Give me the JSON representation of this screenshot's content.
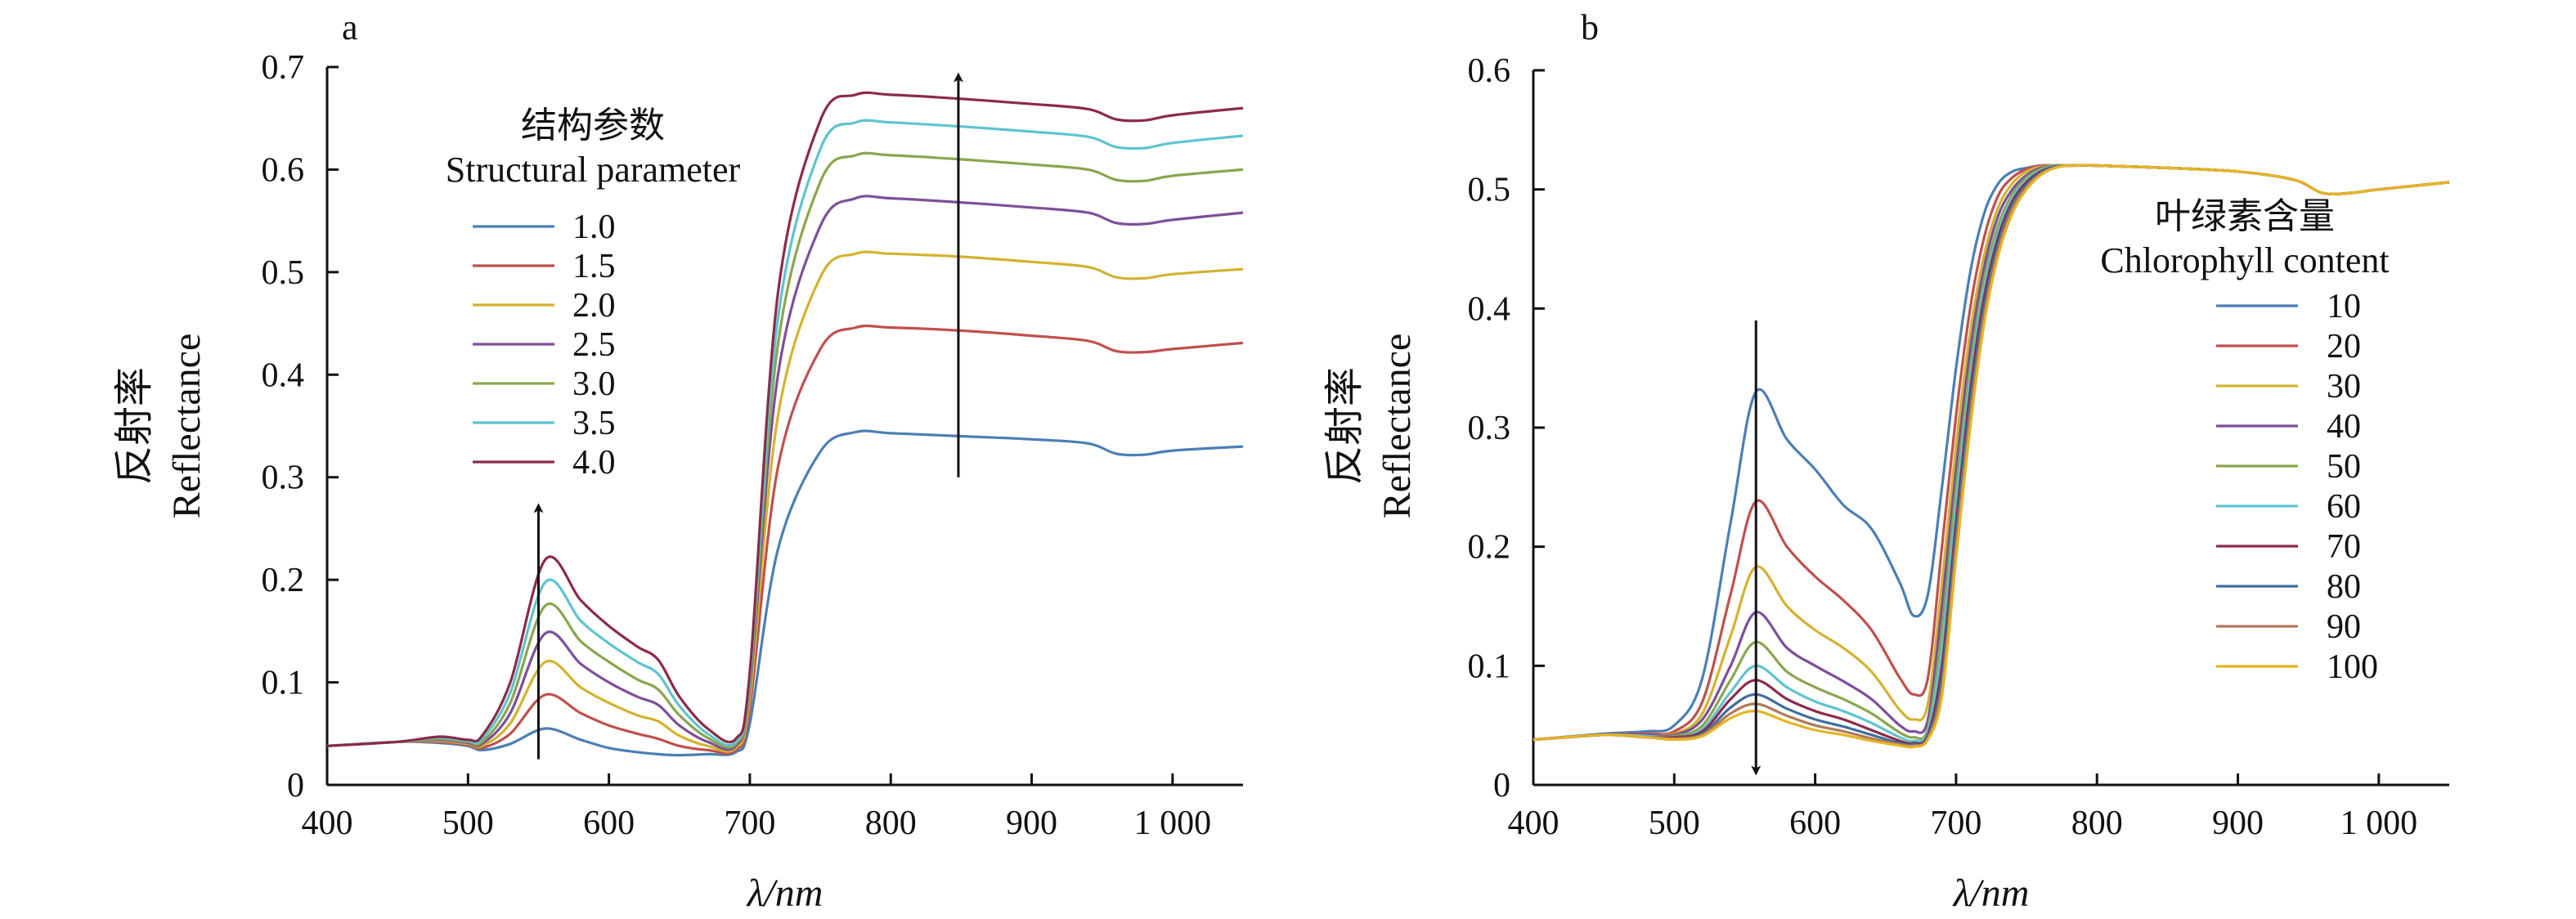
{
  "chart_data": [
    {
      "type": "line",
      "panel_label": "a",
      "xlabel": "λ/nm",
      "ylabel_cn": "反射率",
      "ylabel_en": "Reflectance",
      "xlim": [
        400,
        1050
      ],
      "ylim": [
        0,
        0.7
      ],
      "xticks": [
        {
          "value": 400,
          "label": "400"
        },
        {
          "value": 500,
          "label": "500"
        },
        {
          "value": 600,
          "label": "600"
        },
        {
          "value": 700,
          "label": "700"
        },
        {
          "value": 800,
          "label": "800"
        },
        {
          "value": 900,
          "label": "900"
        },
        {
          "value": 1000,
          "label": "1 000"
        }
      ],
      "yticks": [
        {
          "value": 0,
          "label": "0"
        },
        {
          "value": 0.1,
          "label": "0.1"
        },
        {
          "value": 0.2,
          "label": "0.2"
        },
        {
          "value": 0.3,
          "label": "0.3"
        },
        {
          "value": 0.4,
          "label": "0.4"
        },
        {
          "value": 0.5,
          "label": "0.5"
        },
        {
          "value": 0.6,
          "label": "0.6"
        },
        {
          "value": 0.7,
          "label": "0.7"
        }
      ],
      "grid": false,
      "legend_title_cn": "结构参数",
      "legend_title_en": "Structural parameter",
      "legend_position": "top-left",
      "x": [
        400,
        450,
        480,
        500,
        510,
        530,
        555,
        580,
        600,
        620,
        635,
        650,
        670,
        690,
        700,
        720,
        750,
        775,
        800,
        850,
        900,
        940,
        960,
        980,
        1000,
        1050
      ],
      "series": [
        {
          "name": "1.0",
          "color": "#4a7fb5",
          "values": [
            0.038,
            0.042,
            0.041,
            0.038,
            0.034,
            0.04,
            0.055,
            0.044,
            0.036,
            0.032,
            0.03,
            0.029,
            0.03,
            0.032,
            0.06,
            0.23,
            0.325,
            0.344,
            0.343,
            0.34,
            0.337,
            0.333,
            0.323,
            0.322,
            0.326,
            0.33
          ]
        },
        {
          "name": "1.5",
          "color": "#c0504d",
          "values": [
            0.038,
            0.042,
            0.042,
            0.039,
            0.036,
            0.05,
            0.088,
            0.07,
            0.058,
            0.05,
            0.045,
            0.038,
            0.034,
            0.034,
            0.075,
            0.31,
            0.425,
            0.446,
            0.446,
            0.443,
            0.438,
            0.433,
            0.423,
            0.422,
            0.425,
            0.431
          ]
        },
        {
          "name": "2.0",
          "color": "#d4b22e",
          "values": [
            0.038,
            0.042,
            0.043,
            0.04,
            0.038,
            0.06,
            0.12,
            0.095,
            0.08,
            0.068,
            0.062,
            0.048,
            0.038,
            0.036,
            0.085,
            0.36,
            0.495,
            0.518,
            0.518,
            0.515,
            0.51,
            0.505,
            0.495,
            0.494,
            0.498,
            0.503
          ]
        },
        {
          "name": "2.5",
          "color": "#7d4f9a",
          "values": [
            0.038,
            0.042,
            0.044,
            0.041,
            0.04,
            0.07,
            0.148,
            0.118,
            0.1,
            0.086,
            0.078,
            0.058,
            0.042,
            0.038,
            0.095,
            0.4,
            0.545,
            0.572,
            0.572,
            0.568,
            0.563,
            0.558,
            0.548,
            0.547,
            0.551,
            0.558
          ]
        },
        {
          "name": "3.0",
          "color": "#8aa64f",
          "values": [
            0.038,
            0.042,
            0.045,
            0.042,
            0.042,
            0.08,
            0.175,
            0.14,
            0.12,
            0.103,
            0.093,
            0.068,
            0.046,
            0.04,
            0.1,
            0.43,
            0.588,
            0.614,
            0.614,
            0.61,
            0.605,
            0.6,
            0.59,
            0.589,
            0.594,
            0.6
          ]
        },
        {
          "name": "3.5",
          "color": "#5fc3cf",
          "values": [
            0.038,
            0.042,
            0.046,
            0.043,
            0.045,
            0.09,
            0.198,
            0.16,
            0.138,
            0.12,
            0.108,
            0.077,
            0.05,
            0.042,
            0.105,
            0.455,
            0.62,
            0.646,
            0.646,
            0.642,
            0.637,
            0.632,
            0.622,
            0.621,
            0.626,
            0.633
          ]
        },
        {
          "name": "4.0",
          "color": "#8b2a4a",
          "values": [
            0.038,
            0.042,
            0.047,
            0.044,
            0.048,
            0.1,
            0.22,
            0.18,
            0.155,
            0.135,
            0.122,
            0.086,
            0.055,
            0.045,
            0.11,
            0.48,
            0.648,
            0.673,
            0.673,
            0.669,
            0.664,
            0.659,
            0.649,
            0.648,
            0.653,
            0.66
          ]
        }
      ],
      "arrows": [
        {
          "x": 550,
          "from": 0.025,
          "to": 0.27
        },
        {
          "x": 848,
          "from": 0.3,
          "to": 0.69
        }
      ]
    },
    {
      "type": "line",
      "panel_label": "b",
      "xlabel": "λ/nm",
      "ylabel_cn": "反射率",
      "ylabel_en": "Reflectance",
      "xlim": [
        400,
        1050
      ],
      "ylim": [
        0,
        0.6
      ],
      "xticks": [
        {
          "value": 400,
          "label": "400"
        },
        {
          "value": 500,
          "label": "500"
        },
        {
          "value": 600,
          "label": "600"
        },
        {
          "value": 700,
          "label": "700"
        },
        {
          "value": 800,
          "label": "800"
        },
        {
          "value": 900,
          "label": "900"
        },
        {
          "value": 1000,
          "label": "1 000"
        }
      ],
      "yticks": [
        {
          "value": 0,
          "label": "0"
        },
        {
          "value": 0.1,
          "label": "0.1"
        },
        {
          "value": 0.2,
          "label": "0.2"
        },
        {
          "value": 0.3,
          "label": "0.3"
        },
        {
          "value": 0.4,
          "label": "0.4"
        },
        {
          "value": 0.5,
          "label": "0.5"
        },
        {
          "value": 0.6,
          "label": "0.6"
        }
      ],
      "grid": false,
      "legend_title_cn": "叶绿素含量",
      "legend_title_en": "Chlorophyll content",
      "legend_position": "right",
      "x": [
        400,
        450,
        480,
        500,
        520,
        540,
        558,
        580,
        600,
        620,
        640,
        660,
        670,
        680,
        690,
        700,
        710,
        720,
        730,
        740,
        750,
        760,
        770,
        780,
        800,
        850,
        900,
        940,
        960,
        980,
        1000,
        1050
      ],
      "series": [
        {
          "name": "10",
          "color": "#4a7fb5",
          "values": [
            0.038,
            0.043,
            0.045,
            0.05,
            0.09,
            0.22,
            0.33,
            0.29,
            0.265,
            0.235,
            0.215,
            0.17,
            0.142,
            0.16,
            0.25,
            0.35,
            0.43,
            0.48,
            0.505,
            0.515,
            0.518,
            0.52,
            0.52,
            0.52,
            0.52,
            0.518,
            0.515,
            0.508,
            0.497,
            0.497,
            0.5,
            0.506
          ]
        },
        {
          "name": "20",
          "color": "#c0504d",
          "values": [
            0.038,
            0.042,
            0.043,
            0.045,
            0.07,
            0.16,
            0.238,
            0.2,
            0.175,
            0.155,
            0.13,
            0.09,
            0.076,
            0.09,
            0.2,
            0.31,
            0.4,
            0.46,
            0.495,
            0.51,
            0.517,
            0.52,
            0.52,
            0.52,
            0.52,
            0.518,
            0.515,
            0.508,
            0.497,
            0.497,
            0.5,
            0.506
          ]
        },
        {
          "name": "30",
          "color": "#d4b22e",
          "values": [
            0.038,
            0.042,
            0.042,
            0.043,
            0.06,
            0.125,
            0.183,
            0.15,
            0.13,
            0.115,
            0.095,
            0.063,
            0.055,
            0.068,
            0.17,
            0.285,
            0.38,
            0.445,
            0.485,
            0.505,
            0.515,
            0.519,
            0.52,
            0.52,
            0.52,
            0.518,
            0.515,
            0.508,
            0.497,
            0.497,
            0.5,
            0.506
          ]
        },
        {
          "name": "40",
          "color": "#7d4f9a",
          "values": [
            0.038,
            0.042,
            0.042,
            0.042,
            0.055,
            0.1,
            0.145,
            0.115,
            0.1,
            0.087,
            0.072,
            0.05,
            0.045,
            0.055,
            0.15,
            0.265,
            0.365,
            0.435,
            0.478,
            0.5,
            0.512,
            0.518,
            0.52,
            0.52,
            0.52,
            0.518,
            0.515,
            0.508,
            0.497,
            0.497,
            0.5,
            0.506
          ]
        },
        {
          "name": "50",
          "color": "#8aa64f",
          "values": [
            0.038,
            0.042,
            0.041,
            0.041,
            0.05,
            0.088,
            0.12,
            0.095,
            0.082,
            0.072,
            0.06,
            0.044,
            0.04,
            0.048,
            0.13,
            0.248,
            0.35,
            0.425,
            0.47,
            0.496,
            0.51,
            0.517,
            0.52,
            0.52,
            0.52,
            0.518,
            0.515,
            0.508,
            0.497,
            0.497,
            0.5,
            0.506
          ]
        },
        {
          "name": "60",
          "color": "#5fc3cf",
          "values": [
            0.038,
            0.042,
            0.041,
            0.04,
            0.047,
            0.078,
            0.1,
            0.082,
            0.07,
            0.062,
            0.052,
            0.04,
            0.037,
            0.045,
            0.115,
            0.235,
            0.34,
            0.418,
            0.465,
            0.493,
            0.508,
            0.516,
            0.519,
            0.52,
            0.52,
            0.518,
            0.515,
            0.508,
            0.497,
            0.497,
            0.5,
            0.506
          ]
        },
        {
          "name": "70",
          "color": "#8b2a4a",
          "values": [
            0.038,
            0.042,
            0.04,
            0.04,
            0.045,
            0.072,
            0.088,
            0.072,
            0.062,
            0.055,
            0.046,
            0.037,
            0.035,
            0.042,
            0.1,
            0.22,
            0.33,
            0.41,
            0.46,
            0.49,
            0.506,
            0.515,
            0.519,
            0.52,
            0.52,
            0.518,
            0.515,
            0.508,
            0.497,
            0.497,
            0.5,
            0.506
          ]
        },
        {
          "name": "80",
          "color": "#3e6e9e",
          "values": [
            0.038,
            0.042,
            0.04,
            0.039,
            0.043,
            0.065,
            0.076,
            0.064,
            0.055,
            0.049,
            0.042,
            0.035,
            0.034,
            0.04,
            0.09,
            0.21,
            0.32,
            0.402,
            0.455,
            0.487,
            0.504,
            0.514,
            0.519,
            0.52,
            0.52,
            0.518,
            0.515,
            0.508,
            0.497,
            0.497,
            0.5,
            0.506
          ]
        },
        {
          "name": "90",
          "color": "#b07a5a",
          "values": [
            0.038,
            0.042,
            0.04,
            0.039,
            0.042,
            0.06,
            0.068,
            0.058,
            0.05,
            0.045,
            0.039,
            0.034,
            0.033,
            0.039,
            0.082,
            0.2,
            0.31,
            0.395,
            0.45,
            0.484,
            0.502,
            0.513,
            0.518,
            0.52,
            0.52,
            0.518,
            0.515,
            0.508,
            0.497,
            0.497,
            0.5,
            0.506
          ]
        },
        {
          "name": "100",
          "color": "#e6b422",
          "values": [
            0.038,
            0.042,
            0.04,
            0.038,
            0.041,
            0.056,
            0.062,
            0.053,
            0.046,
            0.042,
            0.037,
            0.033,
            0.032,
            0.038,
            0.075,
            0.19,
            0.3,
            0.388,
            0.445,
            0.48,
            0.5,
            0.512,
            0.518,
            0.52,
            0.52,
            0.518,
            0.515,
            0.508,
            0.497,
            0.497,
            0.5,
            0.506
          ]
        }
      ],
      "arrows": [
        {
          "x": 558,
          "from": 0.39,
          "to": 0.012
        }
      ]
    }
  ]
}
